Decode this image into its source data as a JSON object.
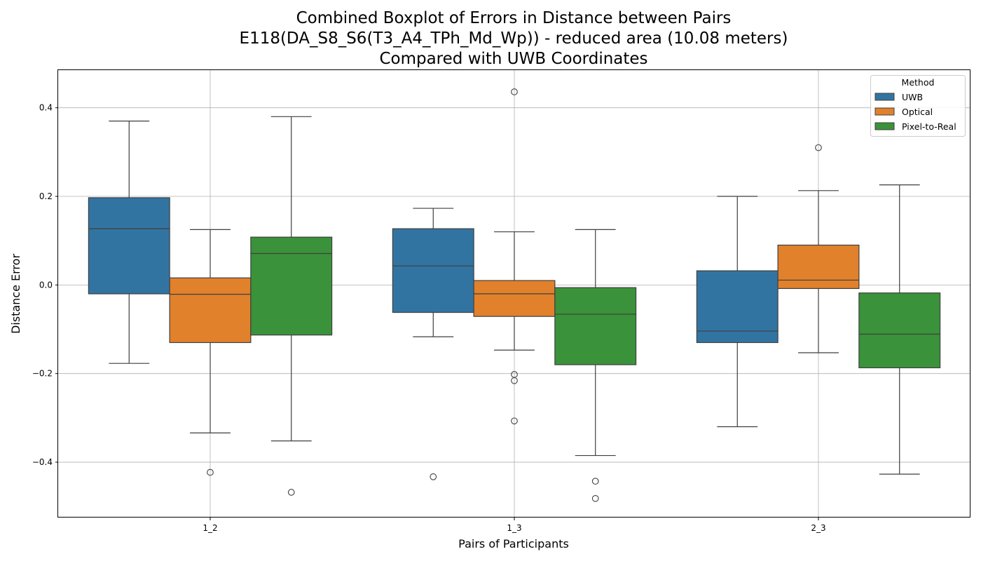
{
  "chart_data": {
    "type": "boxplot",
    "title_lines": [
      "Combined Boxplot of Errors in Distance between Pairs",
      "E118(DA_S8_S6(T3_A4_TPh_Md_Wp)) - reduced area (10.08 meters)",
      "Compared with UWB Coordinates"
    ],
    "xlabel": "Pairs of Participants",
    "ylabel": "Distance Error",
    "ylim": [
      -0.525,
      0.485
    ],
    "yticks": [
      -0.4,
      -0.2,
      0.0,
      0.2,
      0.4
    ],
    "ytick_labels": [
      "−0.4",
      "−0.2",
      "0.0",
      "0.2",
      "0.4"
    ],
    "categories": [
      "1_2",
      "1_3",
      "2_3"
    ],
    "grid": true,
    "legend": {
      "title": "Method",
      "position": "top-right"
    },
    "series": [
      {
        "name": "UWB",
        "color": "#3274a1",
        "boxes": [
          {
            "whisker_low": -0.177,
            "q1": -0.02,
            "median": 0.127,
            "q3": 0.197,
            "whisker_high": 0.37,
            "outliers": []
          },
          {
            "whisker_low": -0.117,
            "q1": -0.062,
            "median": 0.043,
            "q3": 0.127,
            "whisker_high": 0.173,
            "outliers": [
              -0.433
            ]
          },
          {
            "whisker_low": -0.32,
            "q1": -0.13,
            "median": -0.104,
            "q3": 0.032,
            "whisker_high": 0.2,
            "outliers": []
          }
        ]
      },
      {
        "name": "Optical",
        "color": "#e1812c",
        "boxes": [
          {
            "whisker_low": -0.334,
            "q1": -0.13,
            "median": -0.021,
            "q3": 0.016,
            "whisker_high": 0.125,
            "outliers": [
              -0.423
            ]
          },
          {
            "whisker_low": -0.147,
            "q1": -0.071,
            "median": -0.02,
            "q3": 0.01,
            "whisker_high": 0.12,
            "outliers": [
              -0.202,
              -0.216,
              -0.307,
              0.436
            ]
          },
          {
            "whisker_low": -0.153,
            "q1": -0.008,
            "median": 0.011,
            "q3": 0.09,
            "whisker_high": 0.213,
            "outliers": [
              0.31
            ]
          }
        ]
      },
      {
        "name": "Pixel-to-Real",
        "color": "#3a923a",
        "boxes": [
          {
            "whisker_low": -0.352,
            "q1": -0.113,
            "median": 0.071,
            "q3": 0.108,
            "whisker_high": 0.38,
            "outliers": [
              -0.468
            ]
          },
          {
            "whisker_low": -0.385,
            "q1": -0.18,
            "median": -0.066,
            "q3": -0.006,
            "whisker_high": 0.125,
            "outliers": [
              -0.443,
              -0.482
            ]
          },
          {
            "whisker_low": -0.427,
            "q1": -0.187,
            "median": -0.111,
            "q3": -0.018,
            "whisker_high": 0.226,
            "outliers": []
          }
        ]
      }
    ]
  }
}
